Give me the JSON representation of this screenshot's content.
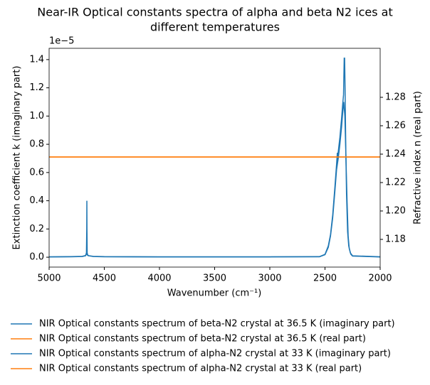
{
  "chart_data": {
    "type": "line",
    "title": [
      "Near-IR Optical constants spectra of alpha and beta N2 ices at",
      "different temperatures"
    ],
    "x_label": "Wavenumber (cm⁻¹)",
    "y_label": "Extinction coefficient k (imaginary part)",
    "y2_label": "Refractive index n (real part)",
    "y_offset_label": "1e−5",
    "xlim": [
      5000,
      2000
    ],
    "xticks": [
      5000,
      4500,
      4000,
      3500,
      3000,
      2500,
      2000
    ],
    "ylim": [
      -0.07,
      1.48
    ],
    "yticks": [
      {
        "value": 0,
        "label": "0.0"
      },
      0.2,
      0.4,
      0.6,
      0.8,
      {
        "value": 1,
        "label": "1.0"
      },
      1.2,
      1.4
    ],
    "y2lim": [
      1.1605,
      1.3145
    ],
    "y2ticks": [
      1.18,
      {
        "value": 1.2,
        "label": "1.20"
      },
      1.22,
      1.24,
      1.26,
      1.28
    ],
    "legend": "below",
    "series": [
      {
        "name": "NIR Optical constants spectrum of beta-N2 crystal at 36.5 K (imaginary part)",
        "color": "#1f77b4",
        "axis": "y",
        "x": [
          5000,
          4800,
          4700,
          4670,
          4662,
          4659,
          4658,
          4657,
          4655,
          4650,
          4640,
          4600,
          4500,
          4000,
          3000,
          2550,
          2500,
          2470,
          2450,
          2430,
          2410,
          2395,
          2388,
          2386,
          2384,
          2378,
          2365,
          2350,
          2340,
          2332,
          2326,
          2322,
          2318,
          2312,
          2305,
          2295,
          2285,
          2270,
          2250,
          2000
        ],
        "values": [
          0.003,
          0.004,
          0.006,
          0.012,
          0.03,
          0.2,
          0.4,
          0.2,
          0.03,
          0.015,
          0.01,
          0.006,
          0.004,
          0.003,
          0.003,
          0.004,
          0.02,
          0.08,
          0.16,
          0.3,
          0.5,
          0.66,
          0.74,
          0.67,
          0.72,
          0.76,
          0.85,
          0.98,
          1.08,
          1.15,
          1.41,
          1.41,
          1.2,
          0.8,
          0.45,
          0.18,
          0.08,
          0.03,
          0.01,
          0.003
        ]
      },
      {
        "name": "NIR Optical constants spectrum of beta-N2 crystal at 36.5 K (real part)",
        "color": "#ff7f0e",
        "axis": "y2",
        "x": [
          5000,
          2000
        ],
        "values": [
          1.238,
          1.238
        ]
      },
      {
        "name": "NIR Optical constants spectrum of alpha-N2 crystal at 33 K (imaginary part)",
        "color": "#1f77b4",
        "axis": "y",
        "x": [
          5000,
          4800,
          4700,
          4670,
          4660,
          4650,
          4600,
          4500,
          4000,
          3000,
          2550,
          2500,
          2470,
          2450,
          2430,
          2410,
          2395,
          2380,
          2365,
          2350,
          2340,
          2330,
          2320,
          2310,
          2300,
          2290,
          2280,
          2265,
          2250,
          2000
        ],
        "values": [
          0.002,
          0.003,
          0.005,
          0.01,
          0.025,
          0.012,
          0.005,
          0.003,
          0.002,
          0.002,
          0.003,
          0.018,
          0.07,
          0.15,
          0.28,
          0.47,
          0.62,
          0.7,
          0.8,
          0.92,
          1.02,
          1.1,
          1.0,
          0.7,
          0.4,
          0.15,
          0.06,
          0.02,
          0.008,
          0.002
        ]
      },
      {
        "name": "NIR Optical constants spectrum of alpha-N2 crystal at 33 K (real part)",
        "color": "#ff7f0e",
        "axis": "y2",
        "x": [
          5000,
          2000
        ],
        "values": [
          1.238,
          1.238
        ]
      }
    ]
  }
}
